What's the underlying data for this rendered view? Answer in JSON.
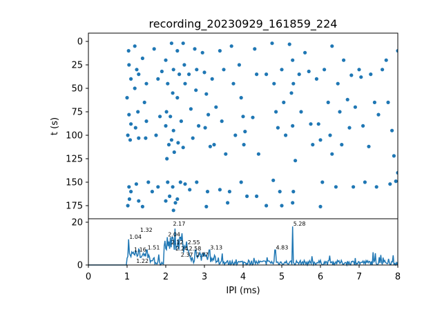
{
  "chart_data": [
    {
      "type": "scatter",
      "title": "recording_20230929_161859_224",
      "xlabel": "",
      "ylabel": "t (s)",
      "xlim": [
        0,
        8
      ],
      "ylim": [
        185,
        -8
      ],
      "yticks": [
        "0",
        "25",
        "50",
        "75",
        "100",
        "125",
        "150",
        "175"
      ],
      "ytick_values": [
        0,
        25,
        50,
        75,
        100,
        125,
        150,
        175
      ],
      "color": "#1f77b4",
      "points": [
        [
          1.04,
          10
        ],
        [
          1.05,
          25
        ],
        [
          1.1,
          40
        ],
        [
          1.0,
          60
        ],
        [
          1.05,
          78
        ],
        [
          1.1,
          88
        ],
        [
          1.02,
          100
        ],
        [
          1.08,
          105
        ],
        [
          1.05,
          155
        ],
        [
          1.1,
          160
        ],
        [
          1.02,
          175
        ],
        [
          1.06,
          168
        ],
        [
          1.2,
          5
        ],
        [
          1.25,
          30
        ],
        [
          1.3,
          35
        ],
        [
          1.2,
          50
        ],
        [
          1.28,
          75
        ],
        [
          1.22,
          92
        ],
        [
          1.3,
          103
        ],
        [
          1.24,
          152
        ],
        [
          1.3,
          170
        ],
        [
          1.4,
          18
        ],
        [
          1.5,
          45
        ],
        [
          1.45,
          65
        ],
        [
          1.5,
          85
        ],
        [
          1.48,
          103
        ],
        [
          1.55,
          150
        ],
        [
          1.4,
          176
        ],
        [
          1.7,
          8
        ],
        [
          1.8,
          40
        ],
        [
          1.75,
          100
        ],
        [
          1.65,
          160
        ],
        [
          1.9,
          32
        ],
        [
          1.85,
          80
        ],
        [
          1.8,
          155
        ],
        [
          2.0,
          20
        ],
        [
          2.05,
          45
        ],
        [
          2.02,
          75
        ],
        [
          2.0,
          90
        ],
        [
          2.08,
          110
        ],
        [
          2.03,
          125
        ],
        [
          2.05,
          150
        ],
        [
          2.1,
          165
        ],
        [
          2.0,
          170
        ],
        [
          2.15,
          2
        ],
        [
          2.2,
          30
        ],
        [
          2.18,
          55
        ],
        [
          2.12,
          80
        ],
        [
          2.2,
          95
        ],
        [
          2.15,
          105
        ],
        [
          2.22,
          118
        ],
        [
          2.18,
          155
        ],
        [
          2.25,
          172
        ],
        [
          2.2,
          180
        ],
        [
          2.3,
          10
        ],
        [
          2.35,
          35
        ],
        [
          2.3,
          60
        ],
        [
          2.4,
          85
        ],
        [
          2.32,
          108
        ],
        [
          2.38,
          150
        ],
        [
          2.3,
          168
        ],
        [
          2.45,
          2
        ],
        [
          2.48,
          25
        ],
        [
          2.5,
          45
        ],
        [
          2.45,
          113
        ],
        [
          2.5,
          152
        ],
        [
          2.6,
          35
        ],
        [
          2.65,
          72
        ],
        [
          2.7,
          103
        ],
        [
          2.62,
          158
        ],
        [
          2.75,
          8
        ],
        [
          2.8,
          30
        ],
        [
          2.78,
          52
        ],
        [
          2.85,
          90
        ],
        [
          2.8,
          150
        ],
        [
          2.95,
          12
        ],
        [
          3.0,
          33
        ],
        [
          3.05,
          56
        ],
        [
          3.1,
          78
        ],
        [
          3.02,
          92
        ],
        [
          3.15,
          112
        ],
        [
          3.08,
          160
        ],
        [
          3.05,
          176
        ],
        [
          3.2,
          40
        ],
        [
          3.3,
          70
        ],
        [
          3.25,
          110
        ],
        [
          3.4,
          10
        ],
        [
          3.5,
          30
        ],
        [
          3.45,
          85
        ],
        [
          3.55,
          120
        ],
        [
          3.4,
          158
        ],
        [
          3.6,
          172
        ],
        [
          3.7,
          5
        ],
        [
          3.75,
          45
        ],
        [
          3.8,
          100
        ],
        [
          3.65,
          160
        ],
        [
          3.9,
          25
        ],
        [
          3.95,
          60
        ],
        [
          4.0,
          80
        ],
        [
          4.05,
          96
        ],
        [
          4.02,
          110
        ],
        [
          3.95,
          150
        ],
        [
          4.1,
          165
        ],
        [
          4.3,
          8
        ],
        [
          4.35,
          35
        ],
        [
          4.25,
          81
        ],
        [
          4.4,
          120
        ],
        [
          4.35,
          165
        ],
        [
          4.6,
          175
        ],
        [
          4.6,
          35
        ],
        [
          4.75,
          2
        ],
        [
          4.8,
          45
        ],
        [
          4.85,
          75
        ],
        [
          4.9,
          92
        ],
        [
          4.78,
          148
        ],
        [
          4.95,
          160
        ],
        [
          5.0,
          30
        ],
        [
          5.05,
          65
        ],
        [
          5.1,
          100
        ],
        [
          5.0,
          175
        ],
        [
          5.2,
          3
        ],
        [
          5.28,
          20
        ],
        [
          5.3,
          45
        ],
        [
          5.25,
          55
        ],
        [
          5.28,
          90
        ],
        [
          5.3,
          160
        ],
        [
          5.28,
          172
        ],
        [
          5.35,
          127
        ],
        [
          5.45,
          35
        ],
        [
          5.5,
          75
        ],
        [
          5.6,
          12
        ],
        [
          5.7,
          32
        ],
        [
          5.75,
          88
        ],
        [
          5.8,
          110
        ],
        [
          5.9,
          40
        ],
        [
          5.95,
          88
        ],
        [
          6.0,
          105
        ],
        [
          6.05,
          150
        ],
        [
          6.0,
          176
        ],
        [
          6.1,
          30
        ],
        [
          6.2,
          65
        ],
        [
          6.25,
          100
        ],
        [
          6.3,
          120
        ],
        [
          6.3,
          5
        ],
        [
          6.4,
          155
        ],
        [
          6.45,
          45
        ],
        [
          6.5,
          75
        ],
        [
          6.55,
          110
        ],
        [
          6.6,
          20
        ],
        [
          6.7,
          62
        ],
        [
          6.75,
          92
        ],
        [
          6.8,
          36
        ],
        [
          6.85,
          155
        ],
        [
          6.9,
          70
        ],
        [
          7.0,
          30
        ],
        [
          7.05,
          38
        ],
        [
          7.1,
          90
        ],
        [
          7.15,
          150
        ],
        [
          7.25,
          112
        ],
        [
          7.3,
          35
        ],
        [
          7.4,
          65
        ],
        [
          7.5,
          78
        ],
        [
          7.45,
          155
        ],
        [
          7.6,
          30
        ],
        [
          7.7,
          20
        ],
        [
          7.75,
          65
        ],
        [
          7.8,
          152
        ],
        [
          7.9,
          122
        ],
        [
          8.0,
          10
        ],
        [
          7.95,
          149
        ],
        [
          8.0,
          140
        ],
        [
          7.85,
          95
        ]
      ]
    },
    {
      "type": "line",
      "xlabel": "IPI (ms)",
      "ylabel": "",
      "xlim": [
        0,
        8
      ],
      "ylim": [
        0,
        20
      ],
      "xticks": [
        "0",
        "1",
        "2",
        "3",
        "4",
        "5",
        "6",
        "7",
        "8"
      ],
      "xtick_values": [
        0,
        1,
        2,
        3,
        4,
        5,
        6,
        7,
        8
      ],
      "yticks": [
        "0",
        "20"
      ],
      "ytick_values": [
        0,
        20
      ],
      "color": "#1f77b4",
      "peaks": [
        {
          "x": 1.04,
          "y": 12,
          "label": "1.04"
        },
        {
          "x": 1.16,
          "y": 6,
          "label": "1.16"
        },
        {
          "x": 1.22,
          "y": 7,
          "label": "1.22"
        },
        {
          "x": 1.32,
          "y": 7,
          "label": "1.32"
        },
        {
          "x": 1.51,
          "y": 7,
          "label": "1.51"
        },
        {
          "x": 2.04,
          "y": 13,
          "label": "2.04"
        },
        {
          "x": 2.12,
          "y": 13,
          "label": "2.12"
        },
        {
          "x": 2.17,
          "y": 13,
          "label": "2.17"
        },
        {
          "x": 2.24,
          "y": 17,
          "label": "2.24"
        },
        {
          "x": 2.37,
          "y": 13,
          "label": "2.37"
        },
        {
          "x": 2.55,
          "y": 7,
          "label": "2.55"
        },
        {
          "x": 2.58,
          "y": 7,
          "label": "2.58"
        },
        {
          "x": 2.77,
          "y": 7,
          "label": "2.77"
        },
        {
          "x": 3.13,
          "y": 7,
          "label": "3.13"
        },
        {
          "x": 4.83,
          "y": 7,
          "label": "4.83"
        },
        {
          "x": 5.28,
          "y": 18,
          "label": "5.28"
        }
      ]
    }
  ]
}
